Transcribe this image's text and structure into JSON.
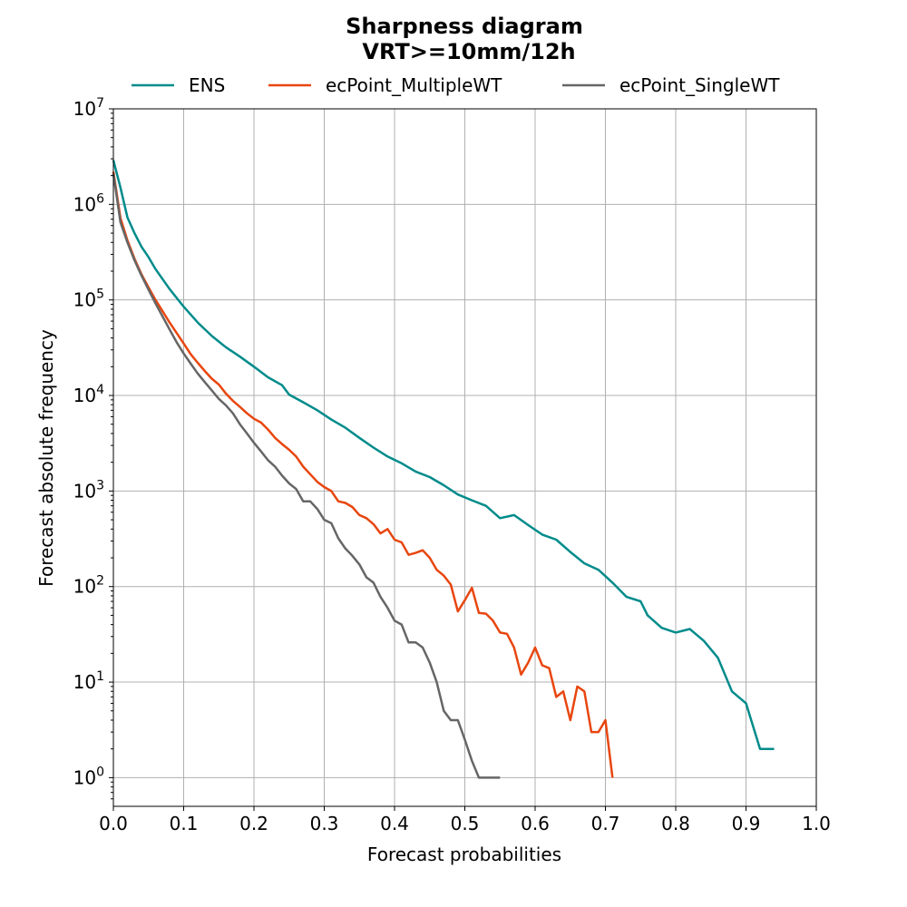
{
  "chart_data": {
    "type": "line",
    "title": "Sharpness diagram",
    "subtitle": "VRT>=10mm/12h",
    "xlabel": "Forecast probabilities",
    "ylabel": "Forecast absolute frequency",
    "xlim": [
      0.0,
      1.0
    ],
    "ylim_log10": [
      -0.3,
      7
    ],
    "yscale": "log",
    "grid": true,
    "legend_placement": "top-center",
    "x_ticks": [
      "0.0",
      "0.1",
      "0.2",
      "0.3",
      "0.4",
      "0.5",
      "0.6",
      "0.7",
      "0.8",
      "0.9",
      "1.0"
    ],
    "y_ticks": [
      {
        "base": "10",
        "exp": "0"
      },
      {
        "base": "10",
        "exp": "1"
      },
      {
        "base": "10",
        "exp": "2"
      },
      {
        "base": "10",
        "exp": "3"
      },
      {
        "base": "10",
        "exp": "4"
      },
      {
        "base": "10",
        "exp": "5"
      },
      {
        "base": "10",
        "exp": "6"
      },
      {
        "base": "10",
        "exp": "7"
      }
    ],
    "series": [
      {
        "name": "ENS",
        "color": "#008b8b",
        "points": [
          [
            0.0,
            2900000
          ],
          [
            0.01,
            1500000
          ],
          [
            0.02,
            730000
          ],
          [
            0.03,
            500000
          ],
          [
            0.04,
            360000
          ],
          [
            0.05,
            280000
          ],
          [
            0.06,
            210000
          ],
          [
            0.07,
            165000
          ],
          [
            0.08,
            130000
          ],
          [
            0.09,
            105000
          ],
          [
            0.1,
            85000
          ],
          [
            0.12,
            58000
          ],
          [
            0.14,
            42000
          ],
          [
            0.16,
            32000
          ],
          [
            0.18,
            25500
          ],
          [
            0.2,
            20000
          ],
          [
            0.22,
            15500
          ],
          [
            0.24,
            12800
          ],
          [
            0.25,
            10200
          ],
          [
            0.27,
            8500
          ],
          [
            0.29,
            7000
          ],
          [
            0.31,
            5600
          ],
          [
            0.33,
            4600
          ],
          [
            0.35,
            3600
          ],
          [
            0.37,
            2850
          ],
          [
            0.39,
            2300
          ],
          [
            0.41,
            1950
          ],
          [
            0.43,
            1600
          ],
          [
            0.45,
            1400
          ],
          [
            0.47,
            1150
          ],
          [
            0.49,
            920
          ],
          [
            0.51,
            800
          ],
          [
            0.53,
            700
          ],
          [
            0.55,
            520
          ],
          [
            0.57,
            560
          ],
          [
            0.59,
            440
          ],
          [
            0.61,
            350
          ],
          [
            0.63,
            310
          ],
          [
            0.65,
            230
          ],
          [
            0.67,
            175
          ],
          [
            0.69,
            150
          ],
          [
            0.71,
            110
          ],
          [
            0.73,
            78
          ],
          [
            0.75,
            70
          ],
          [
            0.76,
            50
          ],
          [
            0.78,
            37
          ],
          [
            0.8,
            33
          ],
          [
            0.82,
            36
          ],
          [
            0.84,
            27
          ],
          [
            0.86,
            18
          ],
          [
            0.88,
            8
          ],
          [
            0.9,
            6
          ],
          [
            0.92,
            2
          ],
          [
            0.94,
            2
          ]
        ]
      },
      {
        "name": "ecPoint_MultipleWT",
        "color": "#e8460f",
        "points": [
          [
            0.0,
            2200000
          ],
          [
            0.01,
            720000
          ],
          [
            0.02,
            420000
          ],
          [
            0.03,
            270000
          ],
          [
            0.04,
            185000
          ],
          [
            0.05,
            135000
          ],
          [
            0.06,
            100000
          ],
          [
            0.07,
            76000
          ],
          [
            0.08,
            58000
          ],
          [
            0.09,
            45000
          ],
          [
            0.1,
            35000
          ],
          [
            0.11,
            27000
          ],
          [
            0.12,
            22000
          ],
          [
            0.13,
            18000
          ],
          [
            0.14,
            15000
          ],
          [
            0.15,
            13000
          ],
          [
            0.16,
            10500
          ],
          [
            0.17,
            8800
          ],
          [
            0.18,
            7600
          ],
          [
            0.19,
            6500
          ],
          [
            0.2,
            5700
          ],
          [
            0.21,
            5200
          ],
          [
            0.22,
            4400
          ],
          [
            0.23,
            3600
          ],
          [
            0.24,
            3100
          ],
          [
            0.25,
            2700
          ],
          [
            0.26,
            2300
          ],
          [
            0.27,
            1800
          ],
          [
            0.28,
            1500
          ],
          [
            0.29,
            1250
          ],
          [
            0.3,
            1100
          ],
          [
            0.31,
            1000
          ],
          [
            0.32,
            780
          ],
          [
            0.33,
            750
          ],
          [
            0.34,
            680
          ],
          [
            0.35,
            560
          ],
          [
            0.36,
            520
          ],
          [
            0.37,
            450
          ],
          [
            0.38,
            360
          ],
          [
            0.39,
            400
          ],
          [
            0.4,
            310
          ],
          [
            0.41,
            290
          ],
          [
            0.42,
            215
          ],
          [
            0.43,
            225
          ],
          [
            0.44,
            240
          ],
          [
            0.45,
            200
          ],
          [
            0.46,
            150
          ],
          [
            0.47,
            130
          ],
          [
            0.48,
            105
          ],
          [
            0.49,
            55
          ],
          [
            0.5,
            72
          ],
          [
            0.51,
            97
          ],
          [
            0.52,
            53
          ],
          [
            0.53,
            52
          ],
          [
            0.54,
            44
          ],
          [
            0.55,
            33
          ],
          [
            0.56,
            32
          ],
          [
            0.57,
            23
          ],
          [
            0.58,
            12
          ],
          [
            0.59,
            16
          ],
          [
            0.6,
            23
          ],
          [
            0.61,
            15
          ],
          [
            0.62,
            14
          ],
          [
            0.63,
            7
          ],
          [
            0.64,
            8
          ],
          [
            0.65,
            4
          ],
          [
            0.66,
            9
          ],
          [
            0.67,
            8
          ],
          [
            0.68,
            3
          ],
          [
            0.69,
            3
          ],
          [
            0.7,
            4
          ],
          [
            0.71,
            1
          ]
        ]
      },
      {
        "name": "ecPoint_SingleWT",
        "color": "#666666",
        "points": [
          [
            0.0,
            2100000
          ],
          [
            0.01,
            650000
          ],
          [
            0.02,
            400000
          ],
          [
            0.03,
            260000
          ],
          [
            0.04,
            180000
          ],
          [
            0.05,
            128000
          ],
          [
            0.06,
            92000
          ],
          [
            0.07,
            67000
          ],
          [
            0.08,
            49000
          ],
          [
            0.09,
            36000
          ],
          [
            0.1,
            27500
          ],
          [
            0.11,
            21500
          ],
          [
            0.12,
            17000
          ],
          [
            0.13,
            13800
          ],
          [
            0.14,
            11300
          ],
          [
            0.15,
            9200
          ],
          [
            0.16,
            7900
          ],
          [
            0.17,
            6500
          ],
          [
            0.18,
            5000
          ],
          [
            0.19,
            4000
          ],
          [
            0.2,
            3200
          ],
          [
            0.21,
            2600
          ],
          [
            0.22,
            2100
          ],
          [
            0.23,
            1800
          ],
          [
            0.24,
            1450
          ],
          [
            0.25,
            1200
          ],
          [
            0.26,
            1050
          ],
          [
            0.27,
            780
          ],
          [
            0.28,
            780
          ],
          [
            0.29,
            650
          ],
          [
            0.3,
            500
          ],
          [
            0.31,
            460
          ],
          [
            0.32,
            320
          ],
          [
            0.33,
            250
          ],
          [
            0.34,
            210
          ],
          [
            0.35,
            170
          ],
          [
            0.36,
            125
          ],
          [
            0.37,
            110
          ],
          [
            0.38,
            78
          ],
          [
            0.39,
            60
          ],
          [
            0.4,
            44
          ],
          [
            0.41,
            40
          ],
          [
            0.42,
            26
          ],
          [
            0.43,
            26
          ],
          [
            0.44,
            23
          ],
          [
            0.45,
            16
          ],
          [
            0.46,
            10
          ],
          [
            0.47,
            5
          ],
          [
            0.48,
            4
          ],
          [
            0.49,
            4
          ],
          [
            0.5,
            2.5
          ],
          [
            0.51,
            1.5
          ],
          [
            0.52,
            1
          ],
          [
            0.53,
            1
          ],
          [
            0.54,
            1
          ],
          [
            0.55,
            1
          ]
        ]
      }
    ]
  }
}
